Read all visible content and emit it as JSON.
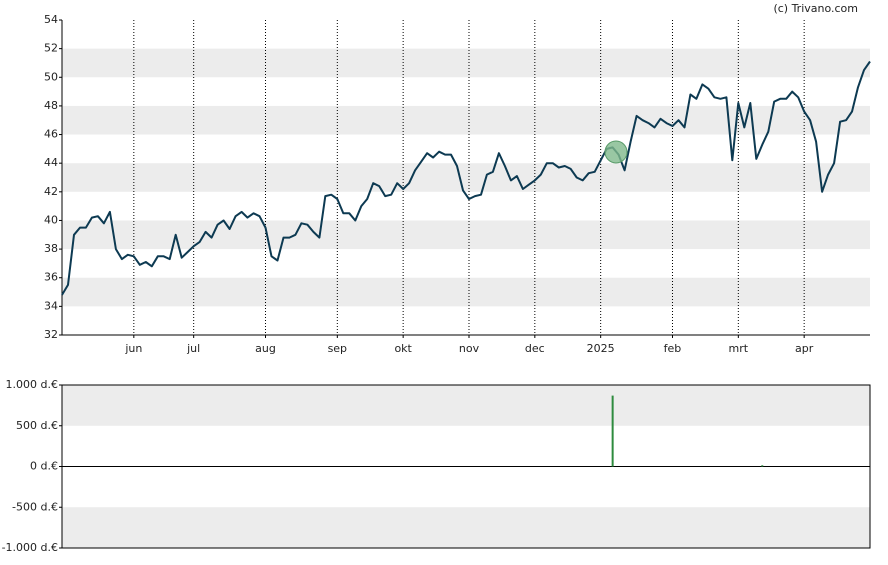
{
  "watermark": "(c) Trivano.com",
  "chart_data": [
    {
      "type": "line",
      "color": "#0d3a52",
      "categories": [
        null,
        null,
        null,
        null,
        null,
        null,
        null,
        null,
        null,
        null,
        null,
        null,
        "jun",
        null,
        null,
        null,
        null,
        null,
        null,
        null,
        null,
        null,
        "jul",
        null,
        null,
        null,
        null,
        null,
        null,
        null,
        null,
        null,
        null,
        null,
        "aug",
        null,
        null,
        null,
        null,
        null,
        null,
        null,
        null,
        null,
        null,
        null,
        "sep",
        null,
        null,
        null,
        null,
        null,
        null,
        null,
        null,
        null,
        null,
        "okt",
        null,
        null,
        null,
        null,
        null,
        null,
        null,
        null,
        null,
        null,
        "nov",
        null,
        null,
        null,
        null,
        null,
        null,
        null,
        null,
        null,
        null,
        "dec",
        null,
        null,
        null,
        null,
        null,
        null,
        null,
        null,
        null,
        null,
        "2025",
        null,
        null,
        null,
        null,
        null,
        null,
        null,
        null,
        null,
        null,
        null,
        "feb",
        null,
        null,
        null,
        null,
        null,
        null,
        null,
        null,
        null,
        null,
        "mrt",
        null,
        null,
        null,
        null,
        null,
        null,
        null,
        null,
        null,
        null,
        "apr",
        null,
        null,
        null,
        null,
        null,
        null,
        null,
        null,
        null,
        null,
        null
      ],
      "values": [
        34.8,
        35.5,
        39.0,
        39.5,
        39.5,
        40.2,
        40.3,
        39.8,
        40.6,
        38.0,
        37.3,
        37.6,
        37.5,
        36.9,
        37.1,
        36.8,
        37.5,
        37.5,
        37.3,
        39.0,
        37.4,
        37.8,
        38.2,
        38.5,
        39.2,
        38.8,
        39.7,
        40.0,
        39.4,
        40.3,
        40.6,
        40.2,
        40.5,
        40.3,
        39.5,
        37.5,
        37.2,
        38.8,
        38.8,
        39.0,
        39.8,
        39.7,
        39.2,
        38.8,
        41.7,
        41.8,
        41.5,
        40.5,
        40.5,
        40.0,
        41.0,
        41.5,
        42.6,
        42.4,
        41.7,
        41.8,
        42.6,
        42.2,
        42.6,
        43.5,
        44.1,
        44.7,
        44.4,
        44.8,
        44.6,
        44.6,
        43.8,
        42.1,
        41.5,
        41.7,
        41.8,
        43.2,
        43.4,
        44.7,
        43.8,
        42.8,
        43.1,
        42.2,
        42.5,
        42.8,
        43.2,
        44.0,
        44.0,
        43.7,
        43.8,
        43.6,
        43.0,
        42.8,
        43.3,
        43.4,
        44.2,
        45.0,
        45.1,
        44.6,
        43.5,
        45.5,
        47.3,
        47.0,
        46.8,
        46.5,
        47.1,
        46.8,
        46.6,
        47.0,
        46.5,
        48.8,
        48.5,
        49.5,
        49.2,
        48.6,
        48.5,
        48.6,
        44.2,
        48.2,
        46.5,
        48.2,
        44.3,
        45.3,
        46.2,
        48.3,
        48.5,
        48.5,
        49.0,
        48.6,
        47.6,
        47.0,
        45.5,
        42.0,
        43.2,
        44.0,
        46.9,
        47.0,
        47.6,
        49.3,
        50.5,
        51.1
      ],
      "ylim": [
        32,
        54
      ],
      "yticks": [
        32,
        34,
        36,
        38,
        40,
        42,
        44,
        46,
        48,
        50,
        52,
        54
      ],
      "grid": true
    },
    {
      "type": "bar",
      "color": "#2e8b3e",
      "values": [
        null,
        null,
        null,
        null,
        null,
        null,
        null,
        null,
        null,
        null,
        null,
        null,
        null,
        null,
        null,
        null,
        null,
        null,
        null,
        null,
        null,
        null,
        null,
        null,
        null,
        null,
        null,
        null,
        null,
        null,
        null,
        null,
        null,
        null,
        null,
        null,
        null,
        null,
        null,
        null,
        null,
        null,
        null,
        null,
        null,
        null,
        null,
        null,
        null,
        null,
        null,
        null,
        null,
        null,
        null,
        null,
        null,
        null,
        null,
        null,
        null,
        null,
        null,
        null,
        null,
        null,
        null,
        null,
        null,
        null,
        null,
        null,
        null,
        null,
        null,
        null,
        null,
        null,
        null,
        null,
        null,
        null,
        null,
        null,
        null,
        null,
        null,
        null,
        null,
        null,
        null,
        null,
        870,
        null,
        null,
        null,
        null,
        null,
        null,
        null,
        null,
        null,
        null,
        null,
        null,
        null,
        null,
        null,
        null,
        null,
        null,
        null,
        null,
        null,
        null,
        null,
        null,
        15,
        null,
        null,
        null,
        null,
        null,
        null,
        null,
        null,
        null,
        null,
        null,
        null,
        null,
        null,
        null,
        null,
        null,
        null
      ],
      "ylim": [
        -1000,
        1000
      ],
      "yticks": [
        {
          "value": -1000,
          "label": "-1.000 d.€"
        },
        {
          "value": -500,
          "label": "-500 d.€"
        },
        {
          "value": 0,
          "label": "0 d.€"
        },
        {
          "value": 500,
          "label": "500 d.€"
        },
        {
          "value": 1000,
          "label": "1.000 d.€"
        }
      ],
      "grid": true
    }
  ]
}
